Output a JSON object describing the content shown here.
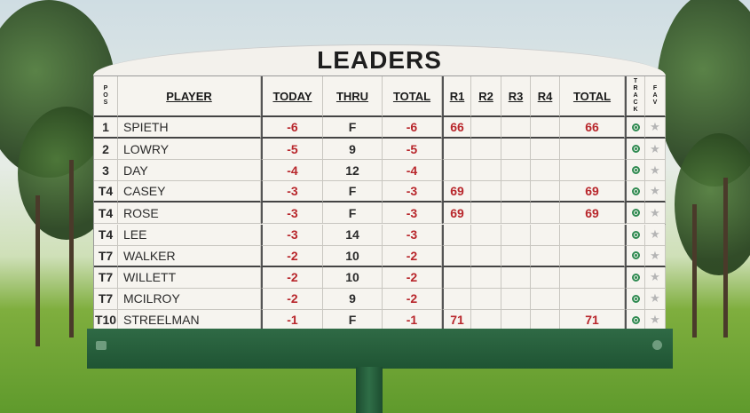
{
  "header": {
    "title": "LEADERS"
  },
  "table": {
    "columns": [
      "POS",
      "PLAYER",
      "TODAY",
      "THRU",
      "TOTAL",
      "R1",
      "R2",
      "R3",
      "R4",
      "TOTAL",
      "TRACK",
      "FAV"
    ],
    "rows": [
      [
        "1",
        "SPIETH",
        "-6",
        "F",
        "-6",
        "66",
        null,
        null,
        null,
        "66"
      ],
      [
        "2",
        "LOWRY",
        "-5",
        "9",
        "-5",
        null,
        null,
        null,
        null,
        null
      ],
      [
        "3",
        "DAY",
        "-4",
        "12",
        "-4",
        null,
        null,
        null,
        null,
        null
      ],
      [
        "T4",
        "CASEY",
        "-3",
        "F",
        "-3",
        "69",
        null,
        null,
        null,
        "69"
      ],
      [
        "T4",
        "ROSE",
        "-3",
        "F",
        "-3",
        "69",
        null,
        null,
        null,
        "69"
      ],
      [
        "T4",
        "LEE",
        "-3",
        "14",
        "-3",
        null,
        null,
        null,
        null,
        null
      ],
      [
        "T7",
        "WALKER",
        "-2",
        "10",
        "-2",
        null,
        null,
        null,
        null,
        null
      ],
      [
        "T7",
        "WILLETT",
        "-2",
        "10",
        "-2",
        null,
        null,
        null,
        null,
        null
      ],
      [
        "T7",
        "MCILROY",
        "-2",
        "9",
        "-2",
        null,
        null,
        null,
        null,
        null
      ],
      [
        "T10",
        "STREELMAN",
        "-1",
        "F",
        "-1",
        "71",
        null,
        null,
        null,
        "71"
      ]
    ]
  }
}
